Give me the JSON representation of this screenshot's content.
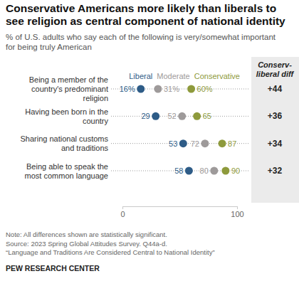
{
  "chart_data": {
    "type": "dot",
    "title": "Conservative Americans more likely than liberals to see religion as central component of national identity",
    "subtitle": "% of U.S. adults who say each of the following is very/somewhat important for being truly American",
    "categories": [
      "Being a member of the country's predominant religion",
      "Having been born in the country",
      "Sharing national customs and traditions",
      "Being able to speak the most common language"
    ],
    "series": [
      {
        "name": "Liberal",
        "color": "#2e5c87",
        "values": [
          16,
          29,
          53,
          58
        ],
        "value_labels": [
          "16%",
          "29",
          "53",
          "58"
        ]
      },
      {
        "name": "Moderate",
        "color": "#9e9a9a",
        "values": [
          31,
          52,
          72,
          80
        ],
        "value_labels": [
          "31%",
          "52",
          "72",
          "80"
        ]
      },
      {
        "name": "Conservative",
        "color": "#8e9a3c",
        "values": [
          60,
          65,
          87,
          90
        ],
        "value_labels": [
          "60%",
          "65",
          "87",
          "90"
        ]
      }
    ],
    "xlim": [
      0,
      100
    ],
    "xticks": [
      0,
      100
    ],
    "orientation": "horizontal",
    "grid": false,
    "data_labels": true,
    "diff_title": "Conserv-liberal diff",
    "diff_labels": [
      "+44",
      "+36",
      "+34",
      "+32"
    ],
    "notes": [
      "Note: All differences shown are statistically significant.",
      "Source: 2023 Spring Global Attitudes Survey. Q44a-d.",
      "“Language and Traditions Are Considered Central to National Identity”"
    ],
    "source": "PEW RESEARCH CENTER"
  }
}
